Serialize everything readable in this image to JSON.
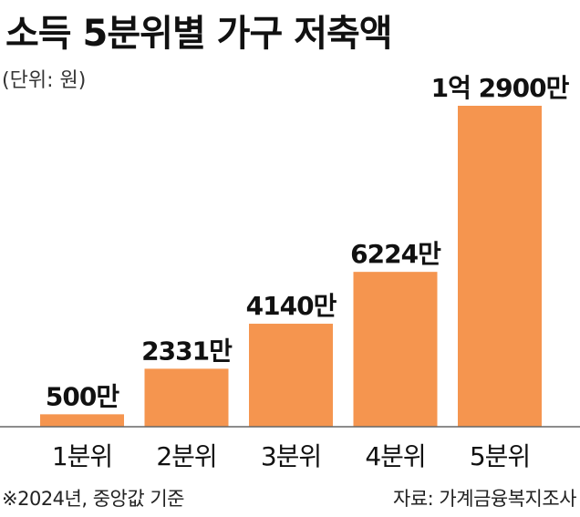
{
  "title": "소득 5분위별 가구 저축액",
  "unit_note": "(단위: 원)",
  "footnote": "※2024년, 중앙값 기준",
  "source": "자료: 가계금융복지조사",
  "colors": {
    "bar": "#F5954F",
    "axis": "#666666",
    "text": "#111111"
  },
  "chart_data": {
    "type": "bar",
    "title": "소득 5분위별 가구 저축액",
    "categories": [
      "1분위",
      "2분위",
      "3분위",
      "4분위",
      "5분위"
    ],
    "values": [
      5000000,
      23310000,
      41400000,
      62240000,
      129000000
    ],
    "data_labels": [
      "500만",
      "2331만",
      "4140만",
      "6224만",
      "1억 2900만"
    ],
    "unit": "원",
    "xlabel": "",
    "ylabel": "",
    "ylim": [
      0,
      129000000
    ],
    "grid": false,
    "legend": "none"
  }
}
